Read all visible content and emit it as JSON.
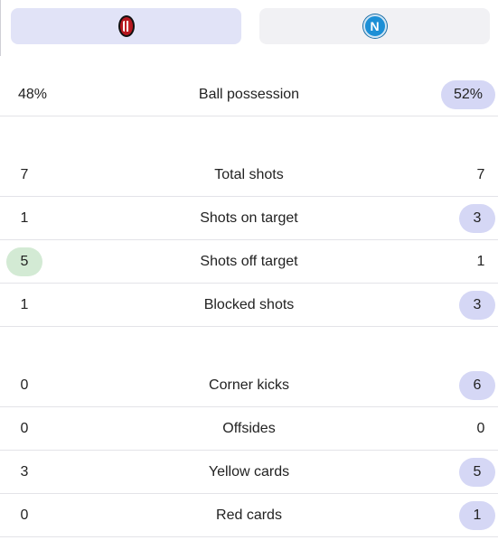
{
  "teams": {
    "home": {
      "icon": "ac-milan-crest-icon",
      "color": "#b5171f"
    },
    "away": {
      "icon": "napoli-crest-icon",
      "initial": "N",
      "color": "#1b8fd6"
    }
  },
  "colors": {
    "highlight_blue": "#d5d7f5",
    "highlight_green": "#d3ead4",
    "active_tab": "#e1e3f7"
  },
  "stats": [
    {
      "label": "Ball possession",
      "home": "48%",
      "away": "52%",
      "highlight": "away"
    },
    {
      "label": "Total shots",
      "home": "7",
      "away": "7",
      "highlight": "none"
    },
    {
      "label": "Shots on target",
      "home": "1",
      "away": "3",
      "highlight": "away"
    },
    {
      "label": "Shots off target",
      "home": "5",
      "away": "1",
      "highlight": "home"
    },
    {
      "label": "Blocked shots",
      "home": "1",
      "away": "3",
      "highlight": "away"
    },
    {
      "label": "Corner kicks",
      "home": "0",
      "away": "6",
      "highlight": "away"
    },
    {
      "label": "Offsides",
      "home": "0",
      "away": "0",
      "highlight": "none"
    },
    {
      "label": "Yellow cards",
      "home": "3",
      "away": "5",
      "highlight": "away"
    },
    {
      "label": "Red cards",
      "home": "0",
      "away": "1",
      "highlight": "away"
    }
  ]
}
